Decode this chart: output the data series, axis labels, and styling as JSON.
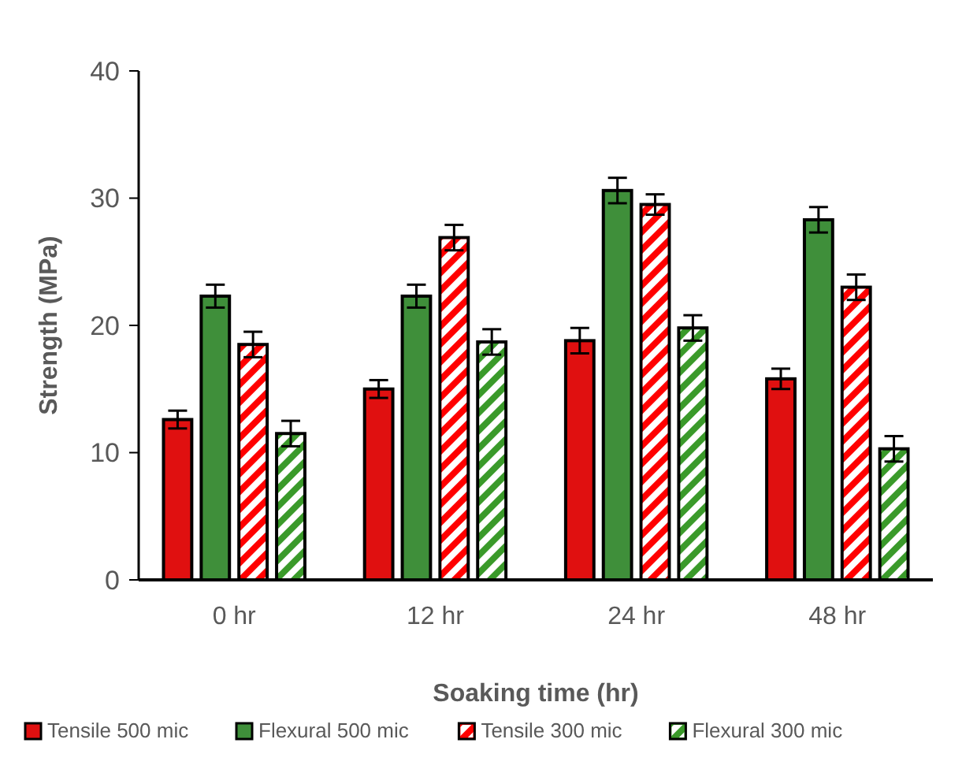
{
  "chart_data": {
    "type": "bar",
    "xlabel": "Soaking time (hr)",
    "ylabel": "Strength  (MPa)",
    "categories": [
      "0 hr",
      "12 hr",
      "24 hr",
      "48 hr"
    ],
    "series": [
      {
        "name": "Tensile 500 mic",
        "color": "#e01010",
        "values": [
          12.6,
          15.0,
          18.8,
          15.8
        ],
        "errors": [
          0.7,
          0.7,
          1.0,
          0.8
        ]
      },
      {
        "name": "Flexural 500 mic",
        "color": "#3f8f3a",
        "values": [
          22.3,
          22.3,
          30.6,
          28.3
        ],
        "errors": [
          0.9,
          0.9,
          1.0,
          1.0
        ]
      },
      {
        "name": "Tensile 300 mic",
        "color": "#ff0000",
        "values": [
          18.5,
          26.9,
          29.5,
          23.0
        ],
        "errors": [
          1.0,
          1.0,
          0.8,
          1.0
        ]
      },
      {
        "name": "Flexural 300 mic",
        "color": "#3a9a2a",
        "values": [
          11.5,
          18.7,
          19.8,
          10.3
        ],
        "errors": [
          1.0,
          1.0,
          1.0,
          1.0
        ]
      }
    ],
    "ylim": [
      0,
      40
    ],
    "yticks": [
      0,
      10,
      20,
      30,
      40
    ],
    "grid": false,
    "legend": "bottom"
  }
}
